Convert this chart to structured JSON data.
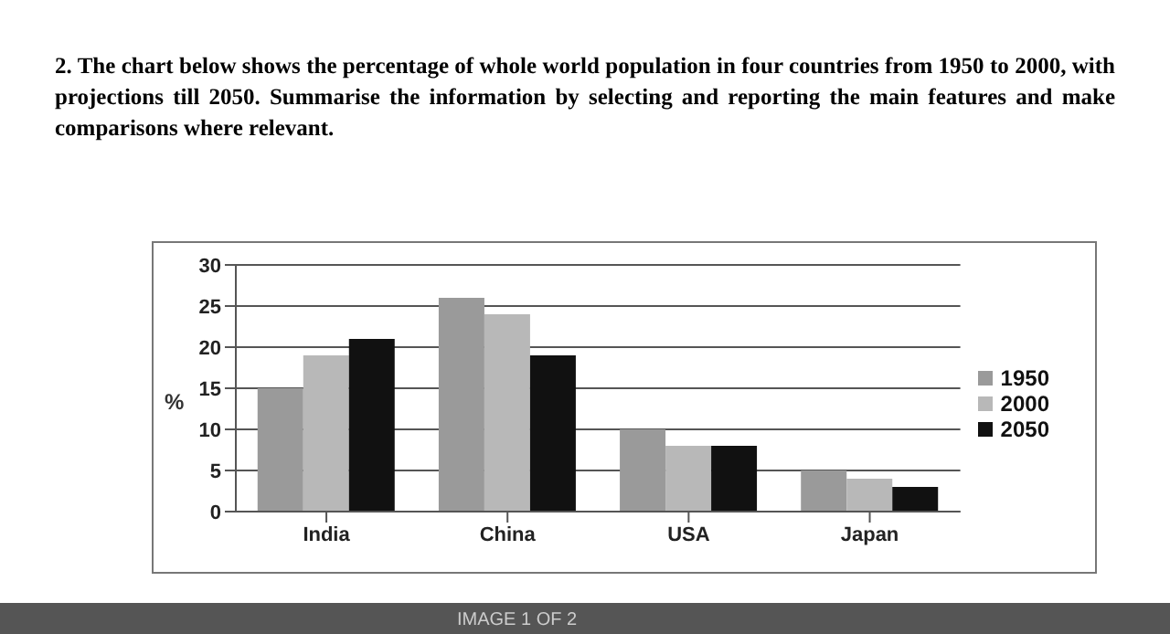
{
  "chart_data": {
    "type": "bar",
    "title": "2. The chart below shows the percentage of whole world population in four countries from 1950 to 2000, with projections till 2050. Summarise the information by selecting and reporting the main features and make comparisons where relevant.",
    "ylabel": "%",
    "categories": [
      "India",
      "China",
      "USA",
      "Japan"
    ],
    "series": [
      {
        "name": "1950",
        "color": "#9a9a9a",
        "values": [
          15,
          26,
          10,
          5
        ]
      },
      {
        "name": "2000",
        "color": "#b8b8b8",
        "values": [
          19,
          24,
          8,
          4
        ]
      },
      {
        "name": "2050",
        "color": "#111111",
        "values": [
          21,
          19,
          8,
          3
        ]
      }
    ],
    "ylim": [
      0,
      30
    ],
    "yticks": [
      0,
      5,
      10,
      15,
      20,
      25,
      30
    ],
    "grid": "y",
    "legend": "right",
    "annotations": [
      "IMAGE 1 OF 2"
    ]
  }
}
